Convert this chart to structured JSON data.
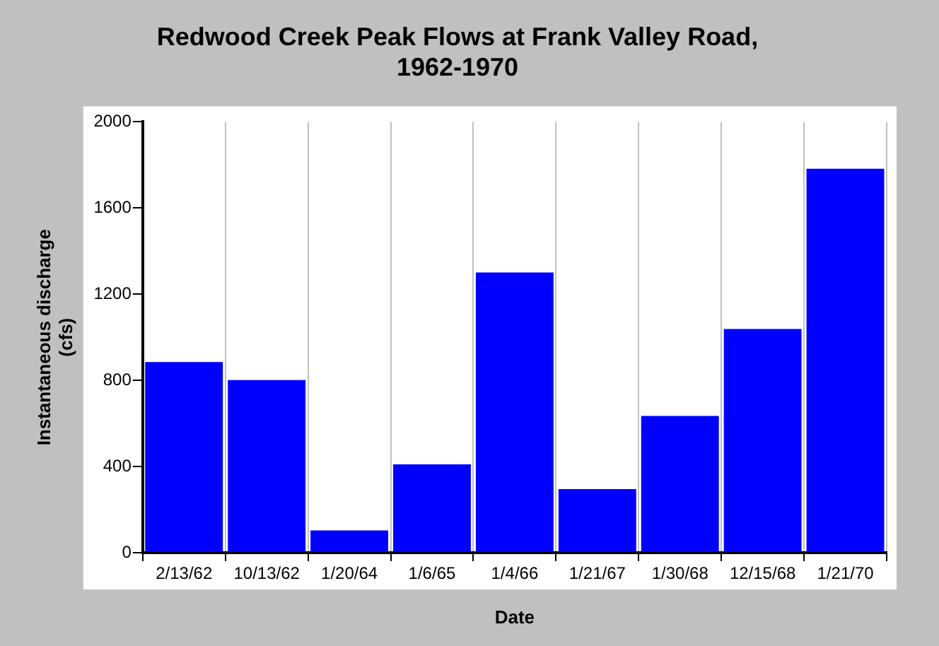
{
  "chart_data": {
    "type": "bar",
    "title": "Redwood Creek Peak Flows at Frank Valley Road, 1962-1970",
    "xlabel": "Date",
    "ylabel": "Instantaneous discharge (cfs)",
    "categories": [
      "2/13/62",
      "10/13/62",
      "1/20/64",
      "1/6/65",
      "1/4/66",
      "1/21/67",
      "1/30/68",
      "12/15/68",
      "1/21/70"
    ],
    "values": [
      885,
      801,
      103,
      410,
      1301,
      295,
      635,
      1038,
      1782
    ],
    "color": "#0000ff",
    "ylim": [
      0,
      2000
    ],
    "yticks": [
      0,
      400,
      800,
      1200,
      1600,
      2000
    ],
    "grid": "x",
    "legend": false
  }
}
